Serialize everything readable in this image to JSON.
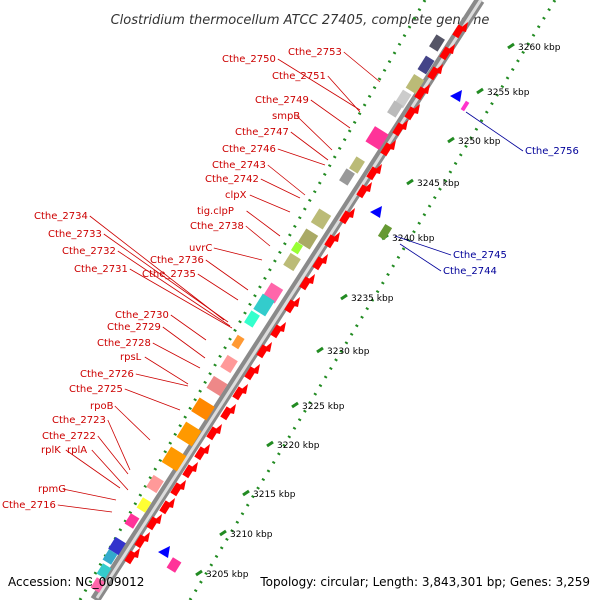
{
  "title": "Clostridium thermocellum ATCC 27405, complete genome",
  "footer": {
    "accession": "Accession: NC_009012",
    "topology": "Topology: circular; Length: 3,843,301 bp; Genes: 3,259"
  },
  "colors": {
    "forward_gene": "#ff0000",
    "reverse_gene": "#0000ff",
    "backbone": "#a0a0a0",
    "gc_skew_dots": "#228b22",
    "label_forward": "#cc0000",
    "label_reverse": "#000099"
  },
  "ticks": [
    {
      "label": "3205 kbp"
    },
    {
      "label": "3210 kbp"
    },
    {
      "label": "3215 kbp"
    },
    {
      "label": "3220 kbp"
    },
    {
      "label": "3225 kbp"
    },
    {
      "label": "3230 kbp"
    },
    {
      "label": "3235 kbp"
    },
    {
      "label": "3240 kbp"
    },
    {
      "label": "3245 kbp"
    },
    {
      "label": "3250 kbp"
    },
    {
      "label": "3255 kbp"
    },
    {
      "label": "3260 kbp"
    }
  ],
  "forward_genes": [
    {
      "name": "Cthe_2753"
    },
    {
      "name": "Cthe_2750"
    },
    {
      "name": "Cthe_2751"
    },
    {
      "name": "Cthe_2749"
    },
    {
      "name": "smpB"
    },
    {
      "name": "Cthe_2747"
    },
    {
      "name": "Cthe_2746"
    },
    {
      "name": "Cthe_2743"
    },
    {
      "name": "Cthe_2742"
    },
    {
      "name": "clpX"
    },
    {
      "name": "tig.clpP"
    },
    {
      "name": "Cthe_2738"
    },
    {
      "name": "uvrC"
    },
    {
      "name": "Cthe_2734"
    },
    {
      "name": "Cthe_2733"
    },
    {
      "name": "Cthe_2736"
    },
    {
      "name": "Cthe_2732"
    },
    {
      "name": "Cthe_2735"
    },
    {
      "name": "Cthe_2731"
    },
    {
      "name": "Cthe_2730"
    },
    {
      "name": "Cthe_2729"
    },
    {
      "name": "Cthe_2728"
    },
    {
      "name": "rpsL"
    },
    {
      "name": "Cthe_2726"
    },
    {
      "name": "Cthe_2725"
    },
    {
      "name": "rpoB"
    },
    {
      "name": "Cthe_2723"
    },
    {
      "name": "Cthe_2722"
    },
    {
      "name": "rplK"
    },
    {
      "name": "rplA"
    },
    {
      "name": "rpmG"
    },
    {
      "name": "Cthe_2716"
    }
  ],
  "reverse_genes": [
    {
      "name": "Cthe_2756"
    },
    {
      "name": "Cthe_2745"
    },
    {
      "name": "Cthe_2744"
    }
  ]
}
